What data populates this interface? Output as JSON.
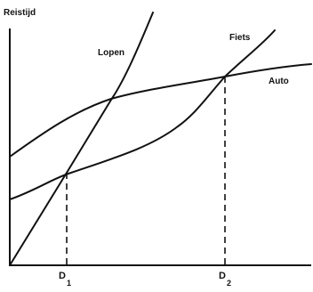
{
  "diagram": {
    "y_axis_label": "Reistijd",
    "curves": [
      {
        "name": "Lopen"
      },
      {
        "name": "Fiets"
      },
      {
        "name": "Auto"
      }
    ],
    "markers": [
      {
        "label": "D",
        "subscript": "1"
      },
      {
        "label": "D",
        "subscript": "2"
      }
    ]
  }
}
